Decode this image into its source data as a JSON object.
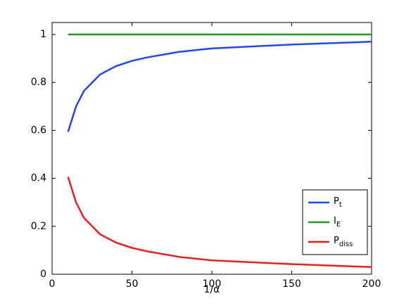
{
  "chart_data": {
    "type": "line",
    "x_label": "1/α",
    "x": [
      10,
      15,
      20,
      30,
      40,
      50,
      60,
      80,
      100,
      150,
      200
    ],
    "series": [
      {
        "name": "P_t",
        "color": "#2546e8",
        "values": [
          0.594,
          0.7,
          0.765,
          0.833,
          0.868,
          0.89,
          0.905,
          0.928,
          0.942,
          0.958,
          0.97
        ]
      },
      {
        "name": "I_E",
        "color": "#1c9a1c",
        "values": [
          1,
          1,
          1,
          1,
          1,
          1,
          1,
          1,
          1,
          1,
          1
        ]
      },
      {
        "name": "P_diss",
        "color": "#e82020",
        "values": [
          0.406,
          0.3,
          0.235,
          0.167,
          0.132,
          0.11,
          0.095,
          0.072,
          0.058,
          0.042,
          0.03
        ]
      }
    ],
    "xlim": [
      0,
      200
    ],
    "xticks": [
      0,
      50,
      100,
      150,
      200
    ],
    "ylim": [
      0,
      1.05
    ],
    "yticks": [
      0,
      0.2,
      0.4,
      0.6,
      0.8,
      1
    ],
    "legend": "lower-right"
  }
}
